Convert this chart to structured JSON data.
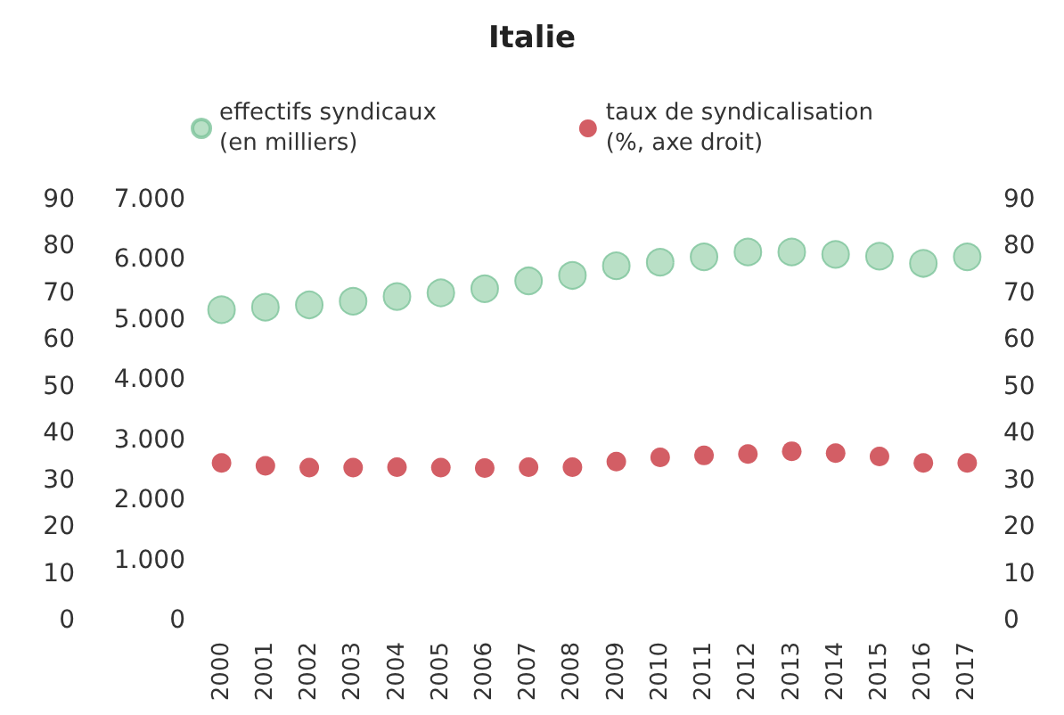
{
  "chart_data": {
    "type": "scatter",
    "title": "Italie",
    "categories": [
      "2000",
      "2001",
      "2002",
      "2003",
      "2004",
      "2005",
      "2006",
      "2007",
      "2008",
      "2009",
      "2010",
      "2011",
      "2012",
      "2013",
      "2014",
      "2015",
      "2016",
      "2017"
    ],
    "series": [
      {
        "name": "effectifs syndicaux\n(en milliers)",
        "color": "#a8d8b8",
        "values": [
          5170,
          5210,
          5250,
          5310,
          5390,
          5450,
          5520,
          5650,
          5740,
          5900,
          5960,
          6050,
          6130,
          6130,
          6090,
          6060,
          5940,
          6050
        ]
      },
      {
        "name": "taux de syndicalisation\n(%, axe droit)",
        "color": "#c8363f",
        "axis": "y2",
        "values": [
          33.7,
          33.1,
          32.7,
          32.7,
          32.8,
          32.7,
          32.6,
          32.8,
          32.8,
          34.0,
          34.9,
          35.3,
          35.6,
          36.2,
          35.8,
          35.1,
          33.7,
          33.7
        ]
      }
    ],
    "ylim": [
      0,
      7000
    ],
    "yticks": [
      0,
      {
        "value": 1000,
        "label": "1.000"
      },
      {
        "value": 2000,
        "label": "2.000"
      },
      {
        "value": 3000,
        "label": "3.000"
      },
      {
        "value": 4000,
        "label": "4.000"
      },
      {
        "value": 5000,
        "label": "5.000"
      },
      {
        "value": 6000,
        "label": "6.000"
      },
      {
        "value": 7000,
        "label": "7.000"
      }
    ],
    "y2lim": [
      0,
      90
    ],
    "y2ticks": [
      0,
      10,
      20,
      30,
      40,
      50,
      60,
      70,
      80,
      90
    ],
    "y3lim": [
      0,
      90
    ],
    "y3ticks": [
      0,
      10,
      20,
      30,
      40,
      50,
      60,
      70,
      80,
      90
    ],
    "grid": false,
    "legend": "top",
    "marker": "circle"
  }
}
